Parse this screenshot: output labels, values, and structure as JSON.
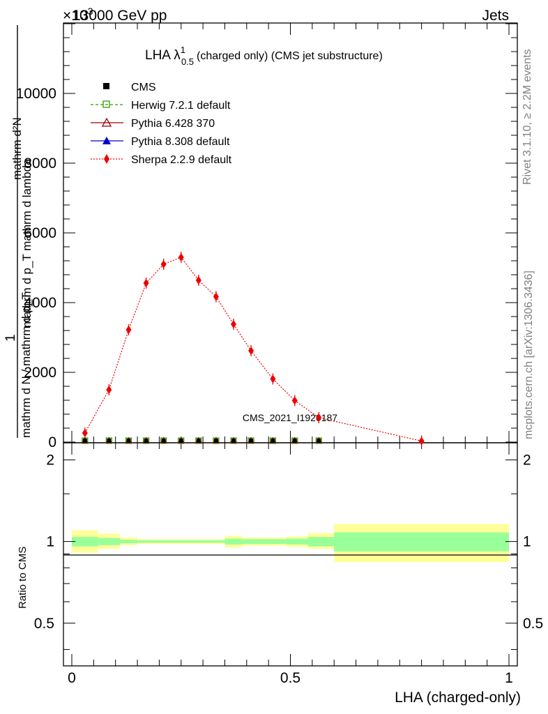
{
  "header": {
    "left": "13000 GeV pp",
    "right": "Jets",
    "exponent": "×10",
    "exponent_power": "3"
  },
  "side_labels": {
    "rivet": "Rivet 3.1.10, ≥ 2.2M events",
    "mcplots": "mcplots.cern.ch [arXiv:1306.3436]"
  },
  "watermark": "CMS_2021_I1920187",
  "plot_title": {
    "main": "LHA λ",
    "superscript": "1",
    "subscript": "0.5",
    "suffix": "(charged only) (CMS jet substructure)"
  },
  "y_label_main": {
    "one": "1",
    "den": "mathrm d N / mathrm d p_T",
    "num2": "mathrm d²N",
    "den2": "mathrm d p_T mathrm d lambda"
  },
  "y_label_ratio": "Ratio to CMS",
  "x_label": "LHA (charged-only)",
  "colors": {
    "cms": "#000000",
    "herwig": "#339900",
    "pythia6": "#990000",
    "pythia8": "#0000cc",
    "sherpa": "#ee0000",
    "band_inner": "#99ff99",
    "band_outer": "#ffff99"
  },
  "chart_data": {
    "type": "line",
    "title": "LHA λ^1_0.5 (charged only) (CMS jet substructure)",
    "xlabel": "LHA (charged-only)",
    "ylabel": "1/(dN/dpT) · d²N/(dpT dλ)",
    "xlim": [
      0,
      1
    ],
    "ylim": [
      0,
      12000
    ],
    "y_multiplier": "×10^3",
    "x_ticks": [
      "0",
      "0.5",
      "1"
    ],
    "y_ticks": [
      "0",
      "2000",
      "4000",
      "6000",
      "8000",
      "10000"
    ],
    "legend": [
      "CMS",
      "Herwig 7.2.1 default",
      "Pythia 6.428 370",
      "Pythia 8.308 default",
      "Sherpa 2.2.9 default"
    ],
    "x": [
      0.03,
      0.085,
      0.13,
      0.17,
      0.21,
      0.25,
      0.29,
      0.33,
      0.37,
      0.41,
      0.46,
      0.51,
      0.565,
      0.8
    ],
    "series": [
      {
        "name": "CMS",
        "marker": "square-filled",
        "values": [
          20,
          20,
          20,
          20,
          20,
          20,
          20,
          20,
          20,
          20,
          20,
          20,
          20,
          null
        ]
      },
      {
        "name": "Herwig 7.2.1 default",
        "marker": "square-open",
        "values": [
          20,
          20,
          20,
          20,
          20,
          20,
          20,
          20,
          20,
          20,
          20,
          20,
          20,
          null
        ]
      },
      {
        "name": "Pythia 6.428 370",
        "marker": "triangle-open",
        "values": [
          20,
          20,
          20,
          20,
          20,
          20,
          20,
          20,
          20,
          20,
          20,
          20,
          20,
          null
        ]
      },
      {
        "name": "Pythia 8.308 default",
        "marker": "triangle-filled",
        "values": [
          20,
          20,
          20,
          20,
          20,
          20,
          20,
          20,
          20,
          20,
          20,
          20,
          20,
          null
        ]
      },
      {
        "name": "Sherpa 2.2.9 default",
        "marker": "diamond",
        "values": [
          260,
          1500,
          3220,
          4560,
          5100,
          5300,
          4640,
          4170,
          3380,
          2620,
          1810,
          1190,
          700,
          30
        ]
      }
    ],
    "ratio": {
      "ylabel": "Ratio to CMS",
      "ylim": [
        0.35,
        2.3
      ],
      "y_ticks": [
        "0.5",
        "1",
        "2"
      ],
      "bins": [
        {
          "lo": 0.0,
          "hi": 0.06,
          "inner": [
            0.96,
            1.04
          ],
          "outer": [
            0.91,
            1.1
          ]
        },
        {
          "lo": 0.06,
          "hi": 0.11,
          "inner": [
            0.97,
            1.03
          ],
          "outer": [
            0.94,
            1.07
          ]
        },
        {
          "lo": 0.11,
          "hi": 0.15,
          "inner": [
            0.985,
            1.015
          ],
          "outer": [
            0.97,
            1.035
          ]
        },
        {
          "lo": 0.15,
          "hi": 0.35,
          "inner": [
            0.99,
            1.01
          ],
          "outer": [
            0.98,
            1.02
          ]
        },
        {
          "lo": 0.35,
          "hi": 0.39,
          "inner": [
            0.975,
            1.025
          ],
          "outer": [
            0.95,
            1.05
          ]
        },
        {
          "lo": 0.39,
          "hi": 0.49,
          "inner": [
            0.98,
            1.02
          ],
          "outer": [
            0.965,
            1.035
          ]
        },
        {
          "lo": 0.49,
          "hi": 0.54,
          "inner": [
            0.975,
            1.025
          ],
          "outer": [
            0.955,
            1.045
          ]
        },
        {
          "lo": 0.54,
          "hi": 0.6,
          "inner": [
            0.96,
            1.04
          ],
          "outer": [
            0.94,
            1.075
          ]
        },
        {
          "lo": 0.6,
          "hi": 1.0,
          "inner": [
            0.92,
            1.08
          ],
          "outer": [
            0.84,
            1.16
          ]
        }
      ]
    }
  }
}
